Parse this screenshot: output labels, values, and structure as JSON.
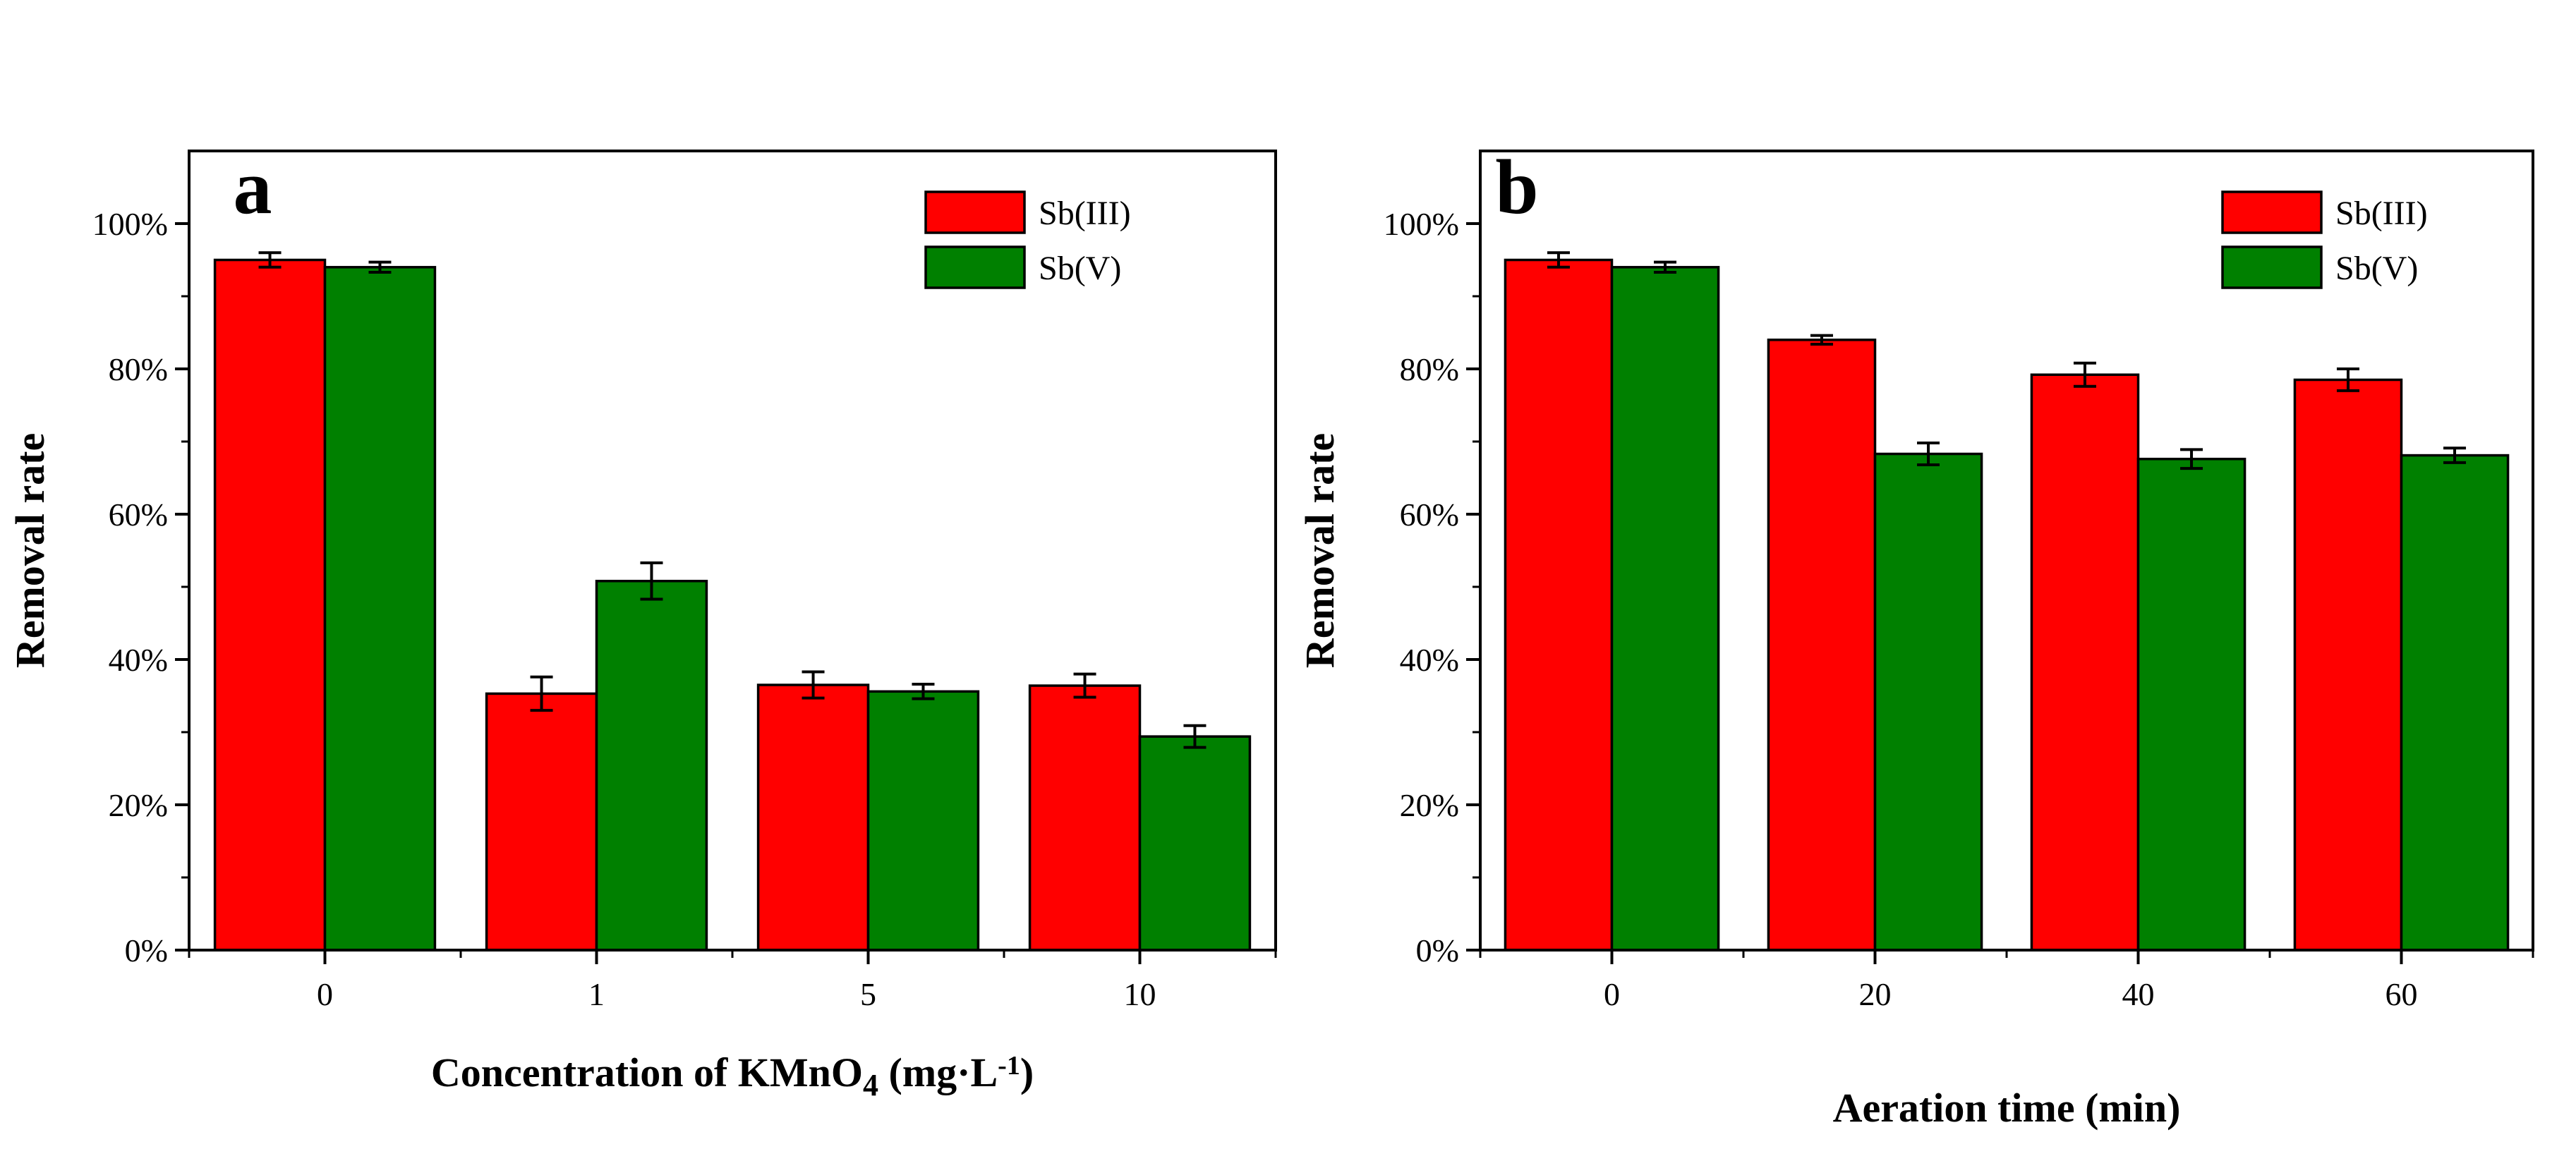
{
  "chart_data": [
    {
      "type": "bar",
      "panel_label": "a",
      "categories": [
        "0",
        "1",
        "5",
        "10"
      ],
      "series": [
        {
          "name": "Sb(III)",
          "color": "#ff0000",
          "values": [
            95.0,
            35.3,
            36.5,
            36.4
          ],
          "errors": [
            1.0,
            2.3,
            1.8,
            1.6
          ]
        },
        {
          "name": "Sb(V)",
          "color": "#008000",
          "values": [
            94.0,
            50.8,
            35.6,
            29.4
          ],
          "errors": [
            0.7,
            2.5,
            1.0,
            1.5
          ]
        }
      ],
      "xlabel_main": "Concentration of KMnO",
      "xlabel_sub": "4",
      "xlabel_unit": " (mg·L",
      "xlabel_sup": "-1",
      "xlabel_end": ")",
      "ylabel": "Removal rate",
      "ylim": [
        0,
        110
      ],
      "yticks": [
        0,
        20,
        40,
        60,
        80,
        100
      ],
      "ytick_labels": [
        "0%",
        "20%",
        "40%",
        "60%",
        "80%",
        "100%"
      ],
      "legend_position": "top-right",
      "grid": false
    },
    {
      "type": "bar",
      "panel_label": "b",
      "categories": [
        "0",
        "20",
        "40",
        "60"
      ],
      "series": [
        {
          "name": "Sb(III)",
          "color": "#ff0000",
          "values": [
            95.0,
            84.0,
            79.2,
            78.5
          ],
          "errors": [
            1.0,
            0.6,
            1.6,
            1.5
          ]
        },
        {
          "name": "Sb(V)",
          "color": "#008000",
          "values": [
            94.0,
            68.3,
            67.6,
            68.1
          ],
          "errors": [
            0.7,
            1.5,
            1.3,
            1.0
          ]
        }
      ],
      "xlabel": "Aeration time (min)",
      "ylabel": "Removal rate",
      "ylim": [
        0,
        110
      ],
      "yticks": [
        0,
        20,
        40,
        60,
        80,
        100
      ],
      "ytick_labels": [
        "0%",
        "20%",
        "40%",
        "60%",
        "80%",
        "100%"
      ],
      "legend_position": "top-right",
      "grid": false
    }
  ]
}
